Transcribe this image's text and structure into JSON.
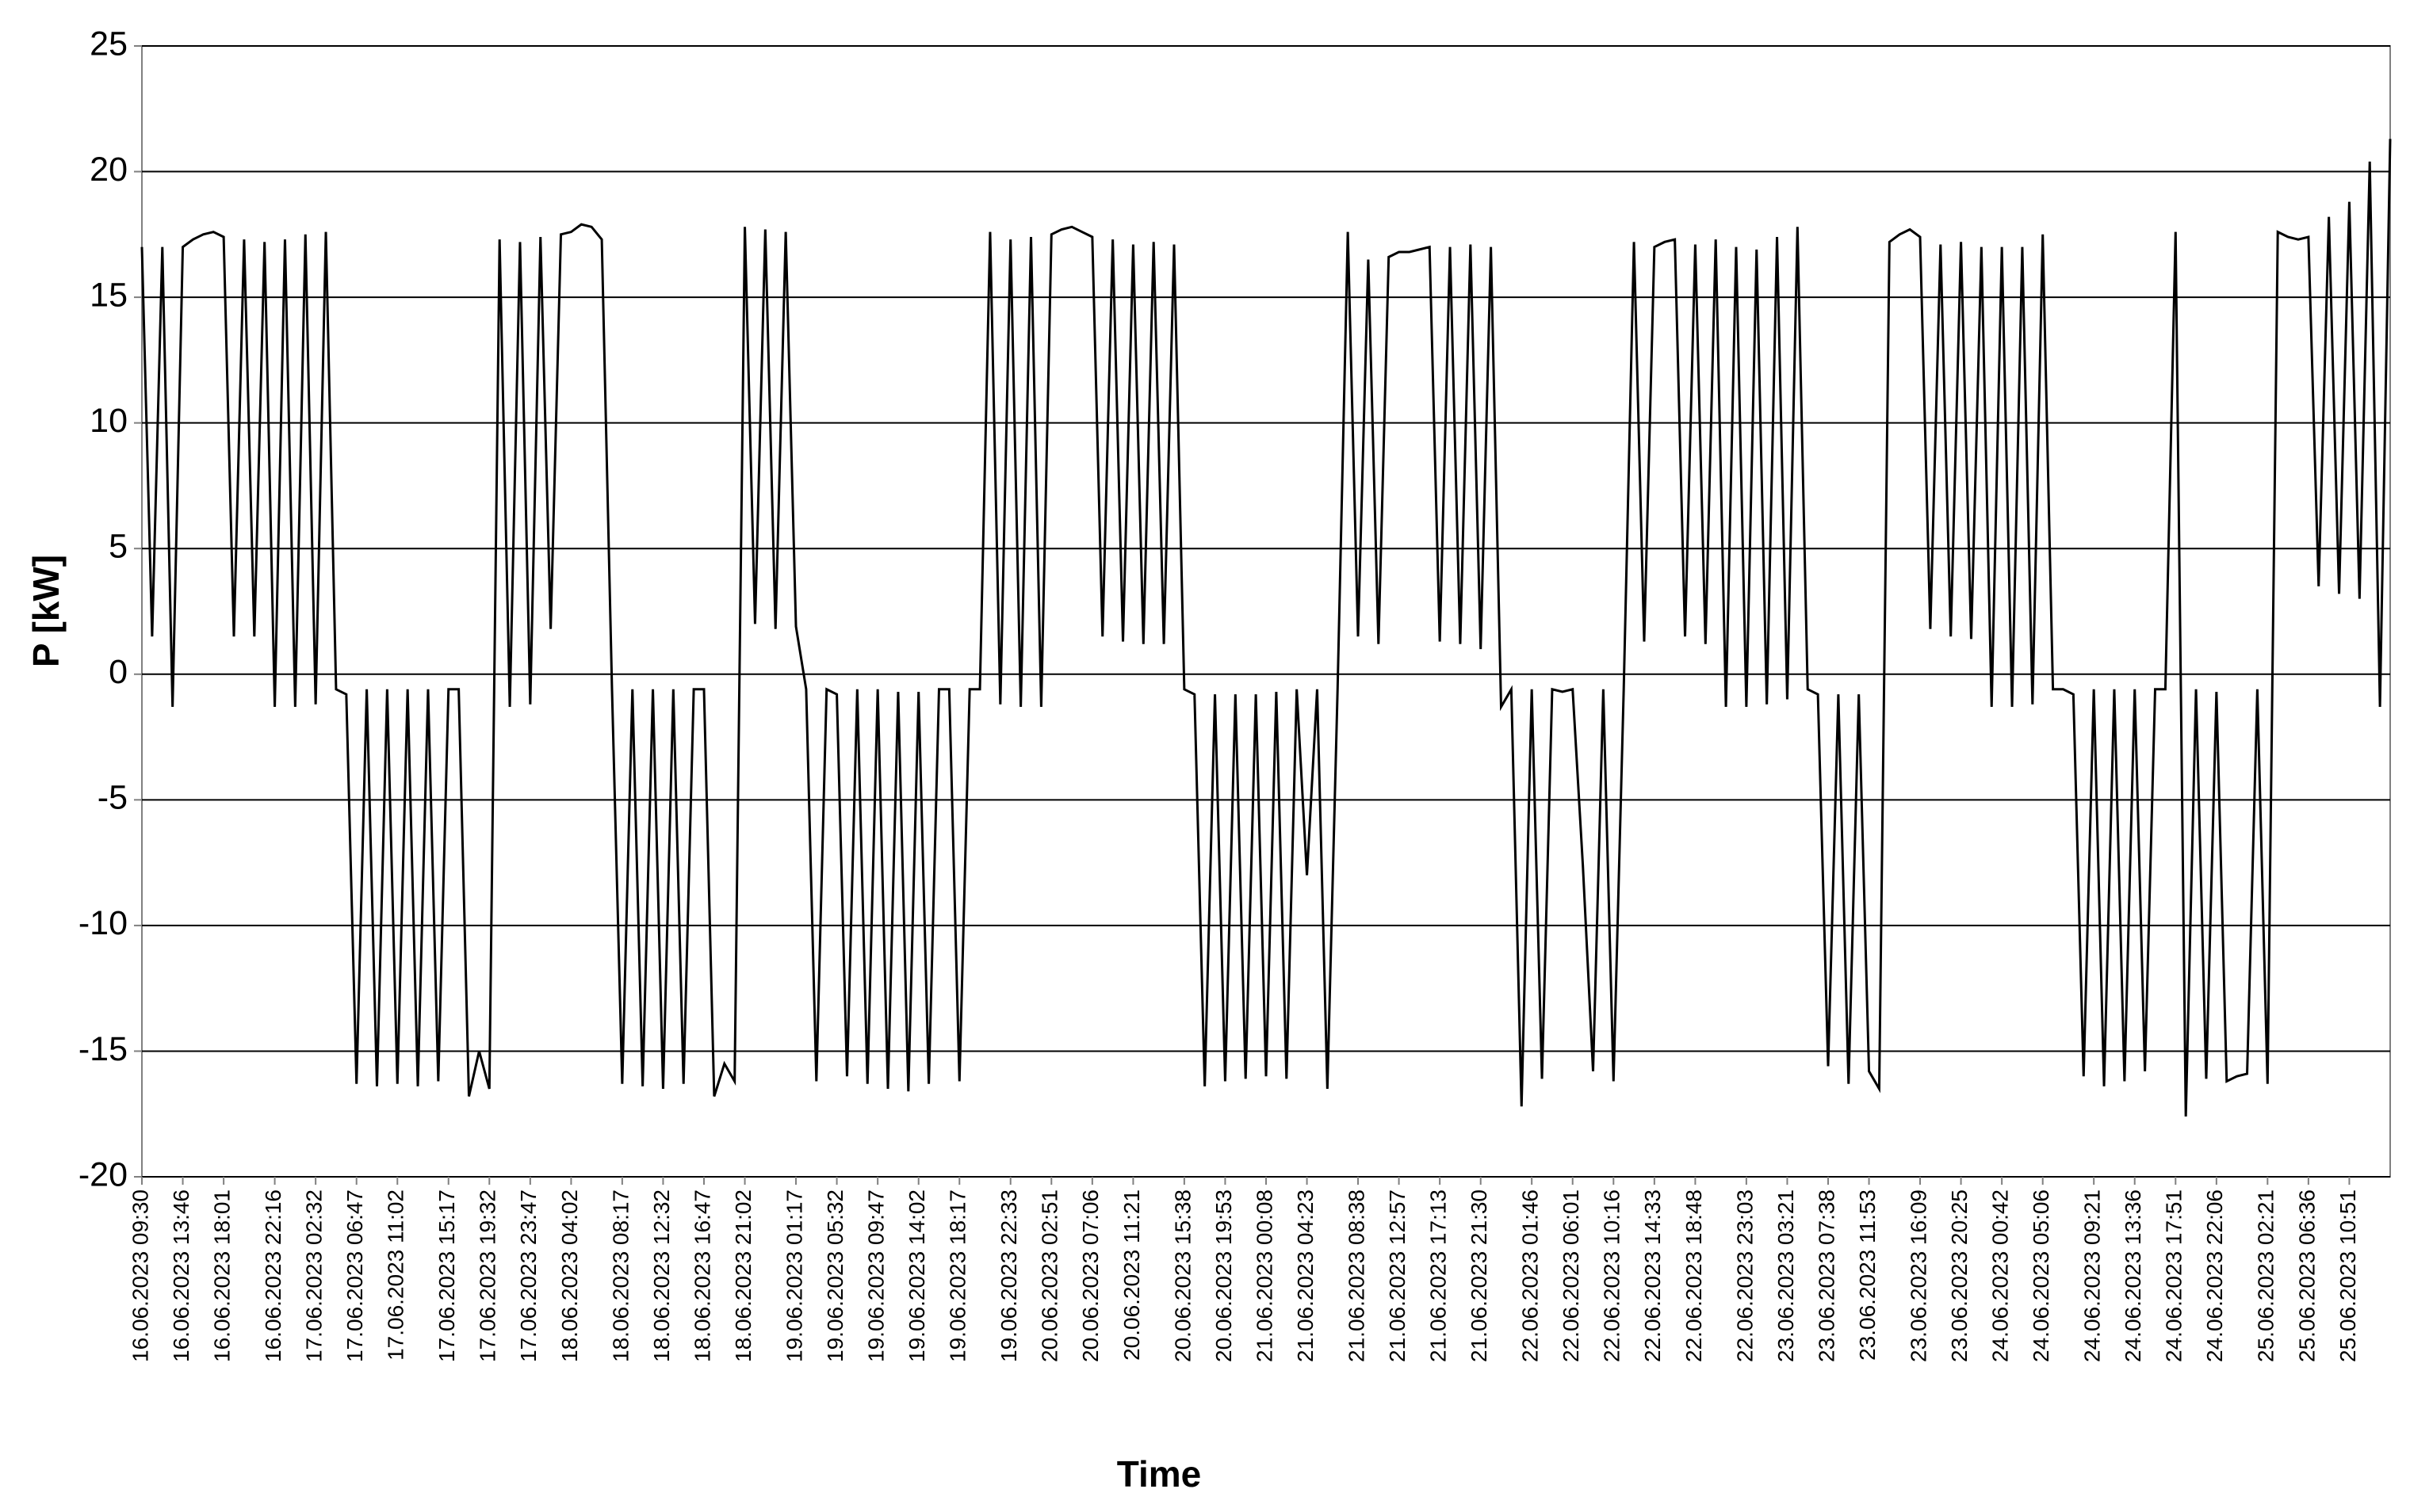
{
  "chart_data": {
    "type": "line",
    "ylabel": "P [kW]",
    "xlabel": "Time",
    "ylim": [
      -20,
      25
    ],
    "yticks": [
      -20,
      -15,
      -10,
      -5,
      0,
      5,
      10,
      15,
      20,
      25
    ],
    "grid": true,
    "categories": [
      "16.06.2023 09:30",
      null,
      null,
      null,
      "16.06.2023 13:46",
      null,
      null,
      null,
      "16.06.2023 18:01",
      null,
      null,
      null,
      null,
      "16.06.2023 22:16",
      null,
      null,
      null,
      "17.06.2023 02:32",
      null,
      null,
      null,
      "17.06.2023 06:47",
      null,
      null,
      null,
      "17.06.2023 11:02",
      null,
      null,
      null,
      null,
      "17.06.2023 15:17",
      null,
      null,
      null,
      "17.06.2023 19:32",
      null,
      null,
      null,
      "17.06.2023 23:47",
      null,
      null,
      null,
      "18.06.2023 04:02",
      null,
      null,
      null,
      null,
      "18.06.2023 08:17",
      null,
      null,
      null,
      "18.06.2023 12:32",
      null,
      null,
      null,
      "18.06.2023 16:47",
      null,
      null,
      null,
      "18.06.2023 21:02",
      null,
      null,
      null,
      null,
      "19.06.2023 01:17",
      null,
      null,
      null,
      "19.06.2023 05:32",
      null,
      null,
      null,
      "19.06.2023 09:47",
      null,
      null,
      null,
      "19.06.2023 14:02",
      null,
      null,
      null,
      "19.06.2023 18:17",
      null,
      null,
      null,
      null,
      "19.06.2023 22:33",
      null,
      null,
      null,
      "20.06.2023 02:51",
      null,
      null,
      null,
      "20.06.2023 07:06",
      null,
      null,
      null,
      "20.06.2023 11:21",
      null,
      null,
      null,
      null,
      "20.06.2023 15:38",
      null,
      null,
      null,
      "20.06.2023 19:53",
      null,
      null,
      null,
      "21.06.2023 00:08",
      null,
      null,
      null,
      "21.06.2023 04:23",
      null,
      null,
      null,
      null,
      "21.06.2023 08:38",
      null,
      null,
      null,
      "21.06.2023 12:57",
      null,
      null,
      null,
      "21.06.2023 17:13",
      null,
      null,
      null,
      "21.06.2023 21:30",
      null,
      null,
      null,
      null,
      "22.06.2023 01:46",
      null,
      null,
      null,
      "22.06.2023 06:01",
      null,
      null,
      null,
      "22.06.2023 10:16",
      null,
      null,
      null,
      "22.06.2023 14:33",
      null,
      null,
      null,
      "22.06.2023 18:48",
      null,
      null,
      null,
      null,
      "22.06.2023 23:03",
      null,
      null,
      null,
      "23.06.2023 03:21",
      null,
      null,
      null,
      "23.06.2023 07:38",
      null,
      null,
      null,
      "23.06.2023 11:53",
      null,
      null,
      null,
      null,
      "23.06.2023 16:09",
      null,
      null,
      null,
      "23.06.2023 20:25",
      null,
      null,
      null,
      "24.06.2023 00:42",
      null,
      null,
      null,
      "24.06.2023 05:06",
      null,
      null,
      null,
      null,
      "24.06.2023 09:21",
      null,
      null,
      null,
      "24.06.2023 13:36",
      null,
      null,
      null,
      "24.06.2023 17:51",
      null,
      null,
      null,
      "24.06.2023 22:06",
      null,
      null,
      null,
      null,
      "25.06.2023 02:21",
      null,
      null,
      null,
      "25.06.2023 06:36",
      null,
      null,
      null,
      "25.06.2023 10:51",
      null,
      null,
      null,
      null
    ],
    "series": [
      {
        "color": "#000000",
        "values": [
          17,
          1.5,
          17,
          -1.3,
          17,
          17.3,
          17.5,
          17.6,
          17.4,
          1.5,
          17.3,
          1.5,
          17.2,
          -1.3,
          17.3,
          -1.3,
          17.5,
          -1.2,
          17.6,
          -0.6,
          -0.8,
          -16.3,
          -0.6,
          -16.4,
          -0.6,
          -16.3,
          -0.6,
          -16.4,
          -0.6,
          -16.2,
          -0.6,
          -0.6,
          -16.8,
          -15,
          -16.5,
          17.3,
          -1.3,
          17.2,
          -1.2,
          17.4,
          1.8,
          17.5,
          17.6,
          17.9,
          17.8,
          17.3,
          -0.6,
          -16.3,
          -0.6,
          -16.4,
          -0.6,
          -16.5,
          -0.6,
          -16.3,
          -0.6,
          -0.6,
          -16.8,
          -15.5,
          -16.2,
          17.8,
          2,
          17.7,
          1.8,
          17.6,
          1.9,
          -0.6,
          -16.2,
          -0.6,
          -0.8,
          -16.0,
          -0.6,
          -16.3,
          -0.6,
          -16.5,
          -0.7,
          -16.6,
          -0.7,
          -16.3,
          -0.6,
          -0.6,
          -16.2,
          -0.6,
          -0.6,
          17.6,
          -1.2,
          17.3,
          -1.3,
          17.4,
          -1.3,
          17.5,
          17.7,
          17.8,
          17.6,
          17.4,
          1.5,
          17.3,
          1.3,
          17.1,
          1.2,
          17.2,
          1.2,
          17.1,
          -0.6,
          -0.8,
          -16.4,
          -0.8,
          -16.2,
          -0.8,
          -16.1,
          -0.8,
          -16.0,
          -0.7,
          -16.1,
          -0.6,
          -8,
          -0.6,
          -16.5,
          -0.6,
          17.6,
          1.5,
          16.5,
          1.2,
          16.6,
          16.8,
          16.8,
          16.9,
          17.0,
          1.3,
          17.0,
          1.2,
          17.1,
          1.0,
          17.0,
          -1.3,
          -0.6,
          -17.2,
          -0.6,
          -16.1,
          -0.6,
          -0.7,
          -0.6,
          -7.6,
          -15.8,
          -0.6,
          -16.2,
          -0.6,
          17.2,
          1.3,
          17.0,
          17.2,
          17.3,
          1.5,
          17.1,
          1.2,
          17.3,
          -1.3,
          17.0,
          -1.3,
          16.9,
          -1.2,
          17.4,
          -1.0,
          17.8,
          -0.6,
          -0.8,
          -15.6,
          -0.8,
          -16.3,
          -0.8,
          -15.8,
          -16.5,
          17.2,
          17.5,
          17.7,
          17.4,
          1.8,
          17.1,
          1.5,
          17.2,
          1.4,
          17.0,
          -1.3,
          17.0,
          -1.3,
          17.0,
          -1.2,
          17.5,
          -0.6,
          -0.6,
          -0.8,
          -16.0,
          -0.6,
          -16.4,
          -0.6,
          -16.2,
          -0.6,
          -15.8,
          -0.6,
          -0.6,
          17.6,
          -17.6,
          -0.6,
          -16.1,
          -0.7,
          -16.2,
          -16.0,
          -15.9,
          -0.6,
          -16.3,
          17.6,
          17.4,
          17.3,
          17.4,
          3.5,
          18.2,
          3.2,
          18.8,
          3.0,
          20.4,
          -1.3,
          21.3
        ]
      }
    ]
  }
}
